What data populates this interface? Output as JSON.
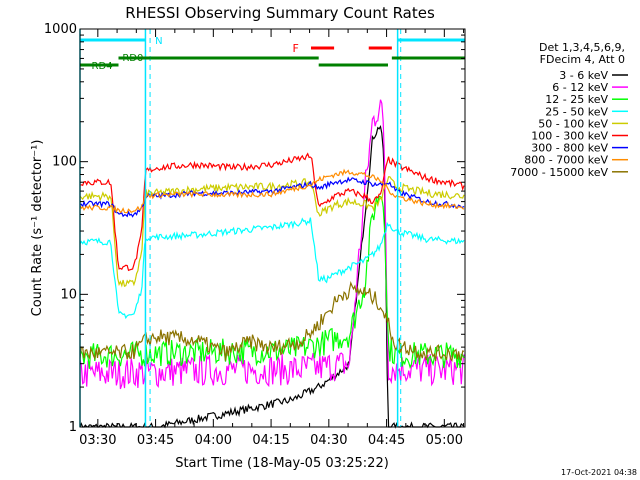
{
  "chart_data": {
    "type": "line",
    "title": "RHESSI Observing Summary Count Rates",
    "xlabel": "Start Time (18-May-05 03:25:22)",
    "ylabel": "Count Rate (s⁻¹ detector⁻¹)",
    "y_scale": "log",
    "ylim": [
      1,
      1000
    ],
    "xlim": [
      0,
      100
    ],
    "x_unit": "minutes after 03:25:22",
    "x_tick_labels": [
      "03:30",
      "03:45",
      "04:00",
      "04:15",
      "04:30",
      "04:45",
      "05:00"
    ],
    "x_tick_values": [
      4.63,
      19.63,
      34.63,
      49.63,
      64.63,
      79.63,
      94.63
    ],
    "y_tick_labels": [
      "1",
      "10",
      "100",
      "1000"
    ],
    "y_tick_values": [
      1,
      10,
      100,
      1000
    ],
    "legend_header": [
      "Det 1,3,4,5,6,9,",
      "FDecim 4, Att 0"
    ],
    "legend_position": "right",
    "series": [
      {
        "name": "3 - 6 keV",
        "color": "#000000",
        "x": [
          0,
          20,
          40,
          55,
          62,
          66,
          70,
          74,
          76,
          78,
          79,
          80,
          82,
          90,
          100
        ],
        "y": [
          1,
          1,
          1.3,
          1.6,
          2,
          2.4,
          3,
          40,
          150,
          190,
          110,
          1,
          1,
          1,
          1
        ]
      },
      {
        "name": "6 - 12 keV",
        "color": "#ff00ff",
        "x": [
          0,
          20,
          40,
          55,
          62,
          66,
          70,
          74,
          76,
          78,
          79,
          80,
          82,
          90,
          100
        ],
        "y": [
          2.5,
          2.6,
          2.7,
          2.7,
          2.8,
          2.9,
          3,
          60,
          200,
          280,
          160,
          2.8,
          2.8,
          2.7,
          2.7
        ]
      },
      {
        "name": "12 - 25 keV",
        "color": "#00ff00",
        "x": [
          0,
          20,
          40,
          55,
          62,
          66,
          70,
          74,
          76,
          78,
          79,
          80,
          82,
          90,
          100
        ],
        "y": [
          3.4,
          3.6,
          3.7,
          3.8,
          4.2,
          4.6,
          5,
          12,
          40,
          60,
          50,
          4,
          3.5,
          3.5,
          3.5
        ]
      },
      {
        "name": "25 - 50 keV",
        "color": "#00ffff",
        "x": [
          0,
          8,
          10,
          14,
          16,
          17,
          20,
          30,
          40,
          50,
          60,
          62,
          64,
          66,
          68,
          70,
          72,
          74,
          76,
          78,
          80,
          82,
          90,
          100
        ],
        "y": [
          25,
          25,
          7,
          7,
          11,
          27,
          27,
          28,
          30,
          32,
          36,
          13,
          13,
          14,
          15,
          16,
          17,
          18,
          20,
          23,
          35,
          30,
          26,
          25
        ]
      },
      {
        "name": "50 - 100 keV",
        "color": "#cccc00",
        "x": [
          0,
          8,
          10,
          14,
          16,
          17,
          20,
          30,
          40,
          50,
          60,
          62,
          66,
          70,
          74,
          76,
          78,
          80,
          82,
          90,
          100
        ],
        "y": [
          55,
          55,
          12,
          12,
          20,
          58,
          58,
          62,
          64,
          65,
          70,
          40,
          47,
          50,
          48,
          45,
          50,
          75,
          65,
          58,
          55
        ]
      },
      {
        "name": "100 - 300 keV",
        "color": "#ff0000",
        "x": [
          0,
          8,
          10,
          14,
          16,
          17,
          20,
          30,
          40,
          50,
          60,
          62,
          66,
          70,
          74,
          76,
          78,
          80,
          82,
          90,
          100
        ],
        "y": [
          70,
          70,
          16,
          16,
          28,
          85,
          90,
          95,
          90,
          95,
          110,
          45,
          55,
          60,
          55,
          50,
          55,
          105,
          95,
          75,
          65
        ]
      },
      {
        "name": "300 - 800 keV",
        "color": "#0000ff",
        "x": [
          0,
          8,
          10,
          14,
          16,
          17,
          20,
          30,
          40,
          50,
          60,
          62,
          66,
          70,
          74,
          76,
          78,
          80,
          82,
          90,
          100
        ],
        "y": [
          48,
          48,
          40,
          40,
          44,
          55,
          55,
          58,
          58,
          60,
          68,
          63,
          70,
          73,
          70,
          68,
          67,
          70,
          60,
          50,
          46
        ]
      },
      {
        "name": "800 - 7000 keV",
        "color": "#ff8c00",
        "x": [
          0,
          8,
          10,
          14,
          16,
          17,
          20,
          30,
          40,
          50,
          60,
          62,
          66,
          70,
          74,
          76,
          78,
          80,
          82,
          90,
          100
        ],
        "y": [
          45,
          45,
          43,
          43,
          45,
          55,
          56,
          57,
          56,
          57,
          67,
          73,
          80,
          84,
          80,
          76,
          72,
          62,
          55,
          48,
          45
        ]
      },
      {
        "name": "7000 - 15000 keV",
        "color": "#8b7300",
        "x": [
          0,
          10,
          14,
          17,
          20,
          30,
          38,
          44,
          50,
          58,
          62,
          66,
          68,
          70,
          73,
          76,
          78,
          80,
          82,
          90,
          100
        ],
        "y": [
          3.6,
          3.6,
          3.7,
          4.5,
          4.8,
          4.5,
          3.6,
          4.4,
          3.9,
          4.5,
          6,
          8.5,
          10,
          10.8,
          10.6,
          9.5,
          8.5,
          6,
          4.2,
          3.6,
          3.6
        ]
      }
    ],
    "markers": {
      "n_label": "N",
      "rd0_label": "RD0",
      "rd4_label": "RD4",
      "f_label": "F",
      "cyan_vertical_lines_x": [
        0,
        17,
        82.5
      ],
      "dashed_vertical_lines_x": [
        18.2,
        83.3,
        100
      ],
      "n_segments_x": [
        [
          0,
          17
        ],
        [
          82.5,
          100
        ]
      ],
      "rd0_segments_x": [
        [
          10,
          18.2
        ],
        [
          18.2,
          62
        ],
        [
          81,
          100
        ]
      ],
      "rd4_segments_x": [
        [
          0,
          10
        ],
        [
          62,
          80
        ]
      ],
      "f_segments_x": [
        [
          60,
          66
        ],
        [
          75,
          81
        ]
      ]
    }
  },
  "footer": {
    "timestamp": "17-Oct-2021 04:38"
  }
}
